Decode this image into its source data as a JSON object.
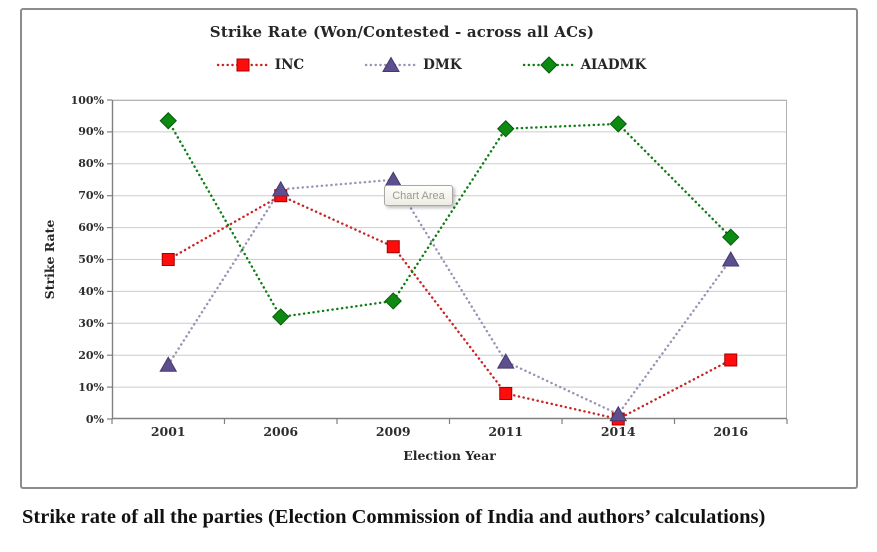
{
  "figure": {
    "title": "Strike Rate (Won/Contested  - across all ACs)",
    "tooltip": "Chart Area",
    "caption": "Strike rate of all the parties (Election Commission of India and authors’ calculations)"
  },
  "chart_data": {
    "type": "line",
    "line_style": "dotted",
    "grid": true,
    "legend_position": "top",
    "title": "Strike Rate (Won/Contested  - across all ACs)",
    "xlabel": "Election Year",
    "ylabel": "Strike Rate",
    "categories": [
      "2001",
      "2006",
      "2009",
      "2011",
      "2014",
      "2016"
    ],
    "ylim": [
      0,
      100
    ],
    "y_ticks": [
      "0%",
      "10%",
      "20%",
      "30%",
      "40%",
      "50%",
      "60%",
      "70%",
      "80%",
      "90%",
      "100%"
    ],
    "series": [
      {
        "name": "INC",
        "marker": "square",
        "line_color": "#cc2222",
        "marker_color": "#ff0d0d",
        "marker_edge": "#a40000",
        "values": [
          50,
          70,
          54,
          8,
          0,
          18.5
        ]
      },
      {
        "name": "DMK",
        "marker": "triangle",
        "line_color": "#9a93b5",
        "marker_color": "#5d4e8e",
        "marker_edge": "#453a6b",
        "values": [
          17,
          72,
          75,
          18,
          1.5,
          50
        ]
      },
      {
        "name": "AIADMK",
        "marker": "diamond",
        "line_color": "#0e7c12",
        "marker_color": "#0c8a12",
        "marker_edge": "#075a08",
        "values": [
          93.5,
          32,
          37,
          91,
          92.5,
          57
        ]
      }
    ],
    "colors": {
      "gridline": "#cccccc",
      "plot_border": "#b3b3b3",
      "axis": "#808080"
    }
  }
}
